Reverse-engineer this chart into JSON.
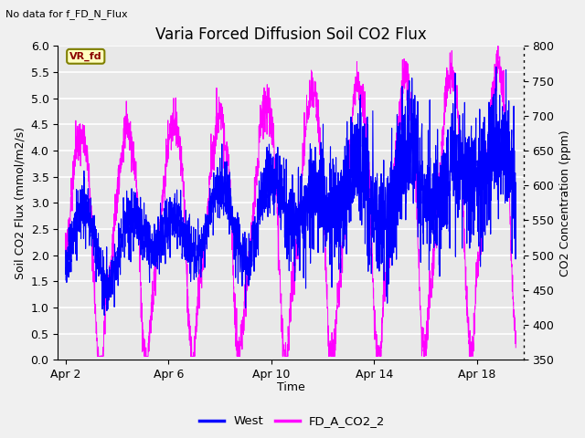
{
  "title": "Varia Forced Diffusion Soil CO2 Flux",
  "subtitle": "No data for f_FD_N_Flux",
  "xlabel": "Time",
  "ylabel_left": "Soil CO2 Flux (mmol/m2/s)",
  "ylabel_right": "CO2 Concentration (ppm)",
  "ylim_left": [
    0.0,
    6.0
  ],
  "ylim_right": [
    350,
    800
  ],
  "yticks_left": [
    0.0,
    0.5,
    1.0,
    1.5,
    2.0,
    2.5,
    3.0,
    3.5,
    4.0,
    4.5,
    5.0,
    5.5,
    6.0
  ],
  "yticks_right": [
    350,
    400,
    450,
    500,
    550,
    600,
    650,
    700,
    750,
    800
  ],
  "xtick_labels": [
    "Apr 2",
    "Apr 6",
    "Apr 10",
    "Apr 14",
    "Apr 18"
  ],
  "xtick_positions": [
    2,
    6,
    10,
    14,
    18
  ],
  "xmin": 1.7,
  "xmax": 19.8,
  "legend_labels": [
    "West",
    "FD_A_CO2_2"
  ],
  "legend_color_west": "#0000FF",
  "legend_color_co2": "#FF00FF",
  "line_color_west": "#0000FF",
  "line_color_co2": "#FF00FF",
  "background_color": "#E8E8E8",
  "fig_background": "#F0F0F0",
  "annotation_text": "VR_fd",
  "grid_color": "#FFFFFF",
  "title_fontsize": 12,
  "label_fontsize": 9,
  "tick_fontsize": 9
}
